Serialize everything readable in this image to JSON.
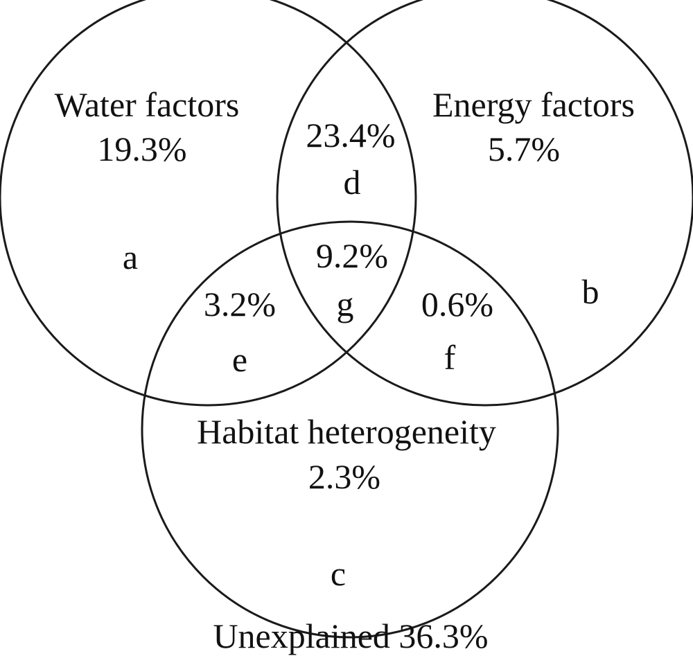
{
  "sets": {
    "water": {
      "name": "Water factors",
      "unique_value": "19.3%",
      "region_letter": "a"
    },
    "energy": {
      "name": "Energy factors",
      "unique_value": "5.7%",
      "region_letter": "b"
    },
    "habitat": {
      "name": "Habitat heterogeneity",
      "unique_value": "2.3%",
      "region_letter": "c"
    }
  },
  "overlaps": {
    "water_energy": {
      "value": "23.4%",
      "letter": "d"
    },
    "water_habitat": {
      "value": "3.2%",
      "letter": "e"
    },
    "energy_habitat": {
      "value": "0.6%",
      "letter": "f"
    },
    "all_three": {
      "value": "9.2%",
      "letter": "g"
    }
  },
  "unexplained": "Unexplained 36.3%"
}
